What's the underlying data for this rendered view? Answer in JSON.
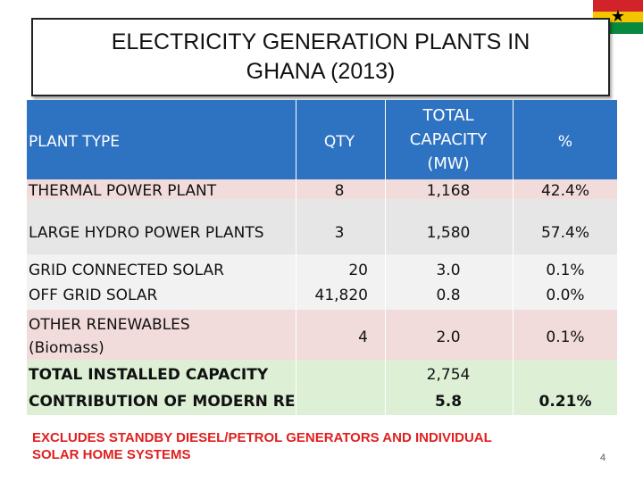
{
  "slide": {
    "title_line1": "ELECTRICITY GENERATION PLANTS IN",
    "title_line2": "GHANA  (2013)",
    "flag_icon": "ghana-flag",
    "page_number": "4",
    "footnote_line1": "EXCLUDES STANDBY DIESEL/PETROL GENERATORS AND INDIVIDUAL",
    "footnote_line2": "SOLAR HOME SYSTEMS"
  },
  "table": {
    "headers": {
      "plant_type": "PLANT TYPE",
      "qty": "QTY",
      "capacity_line1": "TOTAL",
      "capacity_line2": "CAPACITY",
      "capacity_line3": "(MW)",
      "percent": "%"
    },
    "rows": [
      {
        "plant": "THERMAL POWER PLANT",
        "qty": "8",
        "capacity": "1,168",
        "percent": "42.4%"
      },
      {
        "plant": "LARGE HYDRO POWER PLANTS",
        "qty": "3",
        "capacity": "1,580",
        "percent": "57.4%"
      },
      {
        "plant": "GRID CONNECTED SOLAR",
        "qty": "20",
        "capacity": "3.0",
        "percent": "0.1%"
      },
      {
        "plant": "OFF GRID SOLAR",
        "qty": "41,820",
        "capacity": "0.8",
        "percent": "0.0%"
      },
      {
        "plant_line1": "OTHER RENEWABLES",
        "plant_line2": "(Biomass)",
        "qty": "4",
        "capacity": "2.0",
        "percent": "0.1%"
      }
    ],
    "totals": {
      "installed_label": "TOTAL INSTALLED CAPACITY",
      "installed_capacity": "2,754",
      "modern_re_label": "CONTRIBUTION OF MODERN RE",
      "modern_re_capacity": "5.8",
      "modern_re_percent": "0.21%"
    }
  },
  "colors": {
    "header": "#2e73c2",
    "footnote": "#e02020",
    "totals_band": "#ddf0d5"
  }
}
